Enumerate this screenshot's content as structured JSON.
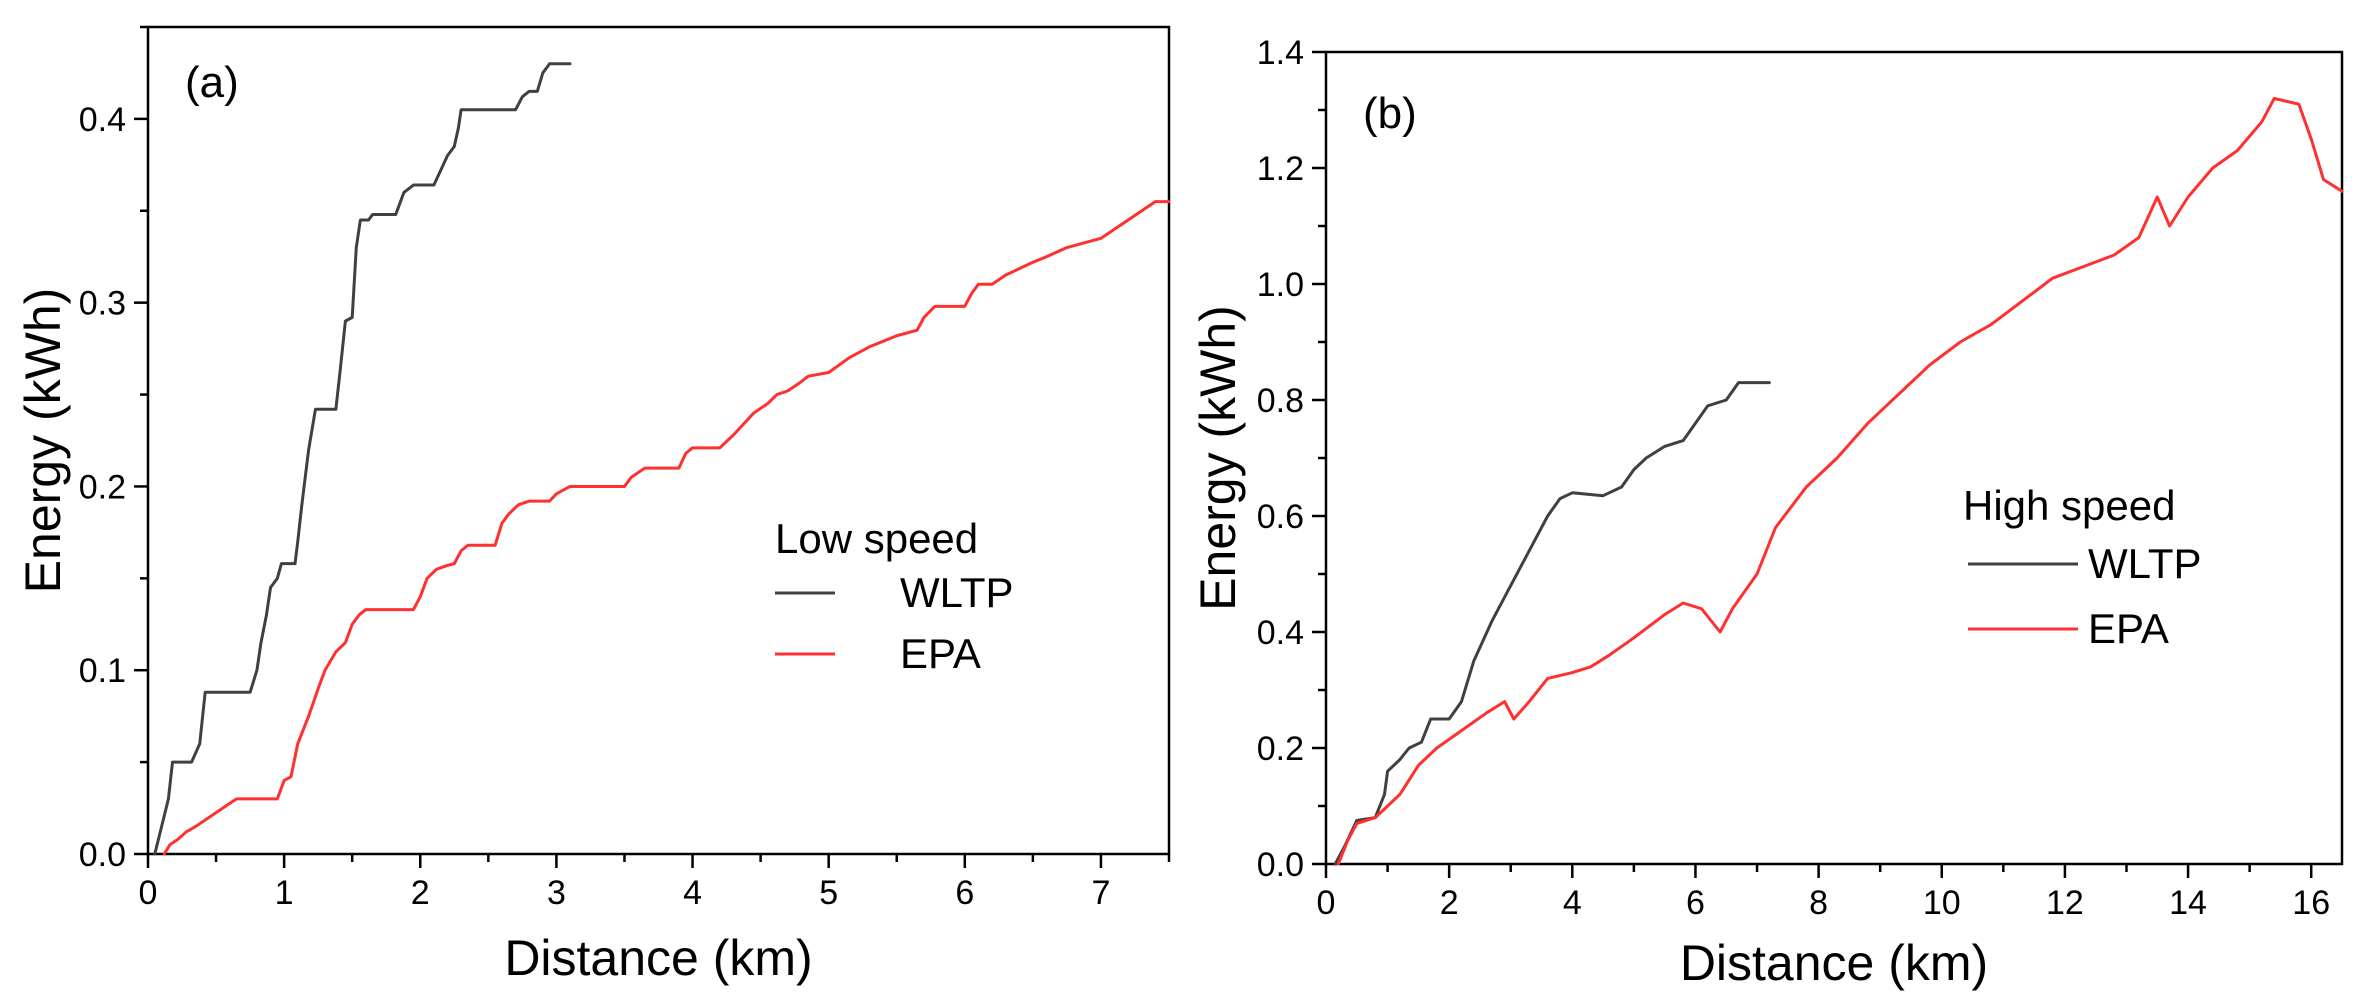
{
  "chart_data": [
    {
      "type": "line",
      "panel_label": "(a)",
      "xlabel": "Distance (km)",
      "ylabel": "Energy (kWh)",
      "xlim": [
        0,
        7.5
      ],
      "ylim": [
        0,
        0.45
      ],
      "xticks": [
        0,
        1,
        2,
        3,
        4,
        5,
        6,
        7
      ],
      "yticks": [
        0.0,
        0.1,
        0.2,
        0.3,
        0.4
      ],
      "ytick_decimals": 1,
      "legend_title": "Low speed",
      "legend_placement": "center-right",
      "grid": false,
      "series": [
        {
          "name": "WLTP",
          "color": "#404040",
          "points": [
            [
              0.05,
              0
            ],
            [
              0.1,
              0.015
            ],
            [
              0.15,
              0.03
            ],
            [
              0.18,
              0.05
            ],
            [
              0.32,
              0.05
            ],
            [
              0.38,
              0.06
            ],
            [
              0.42,
              0.088
            ],
            [
              0.75,
              0.088
            ],
            [
              0.8,
              0.1
            ],
            [
              0.83,
              0.115
            ],
            [
              0.87,
              0.13
            ],
            [
              0.9,
              0.145
            ],
            [
              0.95,
              0.15
            ],
            [
              0.98,
              0.158
            ],
            [
              1.08,
              0.158
            ],
            [
              1.1,
              0.17
            ],
            [
              1.13,
              0.19
            ],
            [
              1.18,
              0.22
            ],
            [
              1.23,
              0.242
            ],
            [
              1.38,
              0.242
            ],
            [
              1.41,
              0.262
            ],
            [
              1.45,
              0.29
            ],
            [
              1.5,
              0.292
            ],
            [
              1.53,
              0.33
            ],
            [
              1.56,
              0.345
            ],
            [
              1.62,
              0.345
            ],
            [
              1.65,
              0.348
            ],
            [
              1.82,
              0.348
            ],
            [
              1.88,
              0.36
            ],
            [
              1.95,
              0.364
            ],
            [
              2.1,
              0.364
            ],
            [
              2.15,
              0.372
            ],
            [
              2.2,
              0.38
            ],
            [
              2.25,
              0.385
            ],
            [
              2.28,
              0.395
            ],
            [
              2.3,
              0.405
            ],
            [
              2.7,
              0.405
            ],
            [
              2.75,
              0.412
            ],
            [
              2.8,
              0.415
            ],
            [
              2.86,
              0.415
            ],
            [
              2.9,
              0.425
            ],
            [
              2.95,
              0.43
            ],
            [
              3.1,
              0.43
            ]
          ]
        },
        {
          "name": "EPA",
          "color": "#ff3030",
          "points": [
            [
              0.12,
              0
            ],
            [
              0.16,
              0.005
            ],
            [
              0.22,
              0.008
            ],
            [
              0.28,
              0.012
            ],
            [
              0.35,
              0.015
            ],
            [
              0.45,
              0.02
            ],
            [
              0.55,
              0.025
            ],
            [
              0.65,
              0.03
            ],
            [
              0.95,
              0.03
            ],
            [
              1.0,
              0.04
            ],
            [
              1.05,
              0.042
            ],
            [
              1.1,
              0.06
            ],
            [
              1.18,
              0.075
            ],
            [
              1.25,
              0.09
            ],
            [
              1.3,
              0.1
            ],
            [
              1.38,
              0.11
            ],
            [
              1.45,
              0.115
            ],
            [
              1.5,
              0.125
            ],
            [
              1.55,
              0.13
            ],
            [
              1.6,
              0.133
            ],
            [
              1.95,
              0.133
            ],
            [
              2.0,
              0.14
            ],
            [
              2.05,
              0.15
            ],
            [
              2.12,
              0.155
            ],
            [
              2.2,
              0.157
            ],
            [
              2.25,
              0.158
            ],
            [
              2.3,
              0.165
            ],
            [
              2.35,
              0.168
            ],
            [
              2.55,
              0.168
            ],
            [
              2.6,
              0.18
            ],
            [
              2.65,
              0.185
            ],
            [
              2.72,
              0.19
            ],
            [
              2.8,
              0.192
            ],
            [
              2.95,
              0.192
            ],
            [
              3.0,
              0.196
            ],
            [
              3.1,
              0.2
            ],
            [
              3.5,
              0.2
            ],
            [
              3.55,
              0.205
            ],
            [
              3.65,
              0.21
            ],
            [
              3.9,
              0.21
            ],
            [
              3.95,
              0.218
            ],
            [
              4.0,
              0.221
            ],
            [
              4.2,
              0.221
            ],
            [
              4.3,
              0.228
            ],
            [
              4.45,
              0.24
            ],
            [
              4.55,
              0.245
            ],
            [
              4.62,
              0.25
            ],
            [
              4.7,
              0.252
            ],
            [
              4.78,
              0.256
            ],
            [
              4.85,
              0.26
            ],
            [
              5.0,
              0.262
            ],
            [
              5.15,
              0.27
            ],
            [
              5.3,
              0.276
            ],
            [
              5.5,
              0.282
            ],
            [
              5.65,
              0.285
            ],
            [
              5.7,
              0.292
            ],
            [
              5.78,
              0.298
            ],
            [
              6.0,
              0.298
            ],
            [
              6.05,
              0.305
            ],
            [
              6.1,
              0.31
            ],
            [
              6.2,
              0.31
            ],
            [
              6.3,
              0.315
            ],
            [
              6.5,
              0.322
            ],
            [
              6.6,
              0.325
            ],
            [
              6.75,
              0.33
            ],
            [
              7.0,
              0.335
            ],
            [
              7.1,
              0.34
            ],
            [
              7.2,
              0.345
            ],
            [
              7.3,
              0.35
            ],
            [
              7.4,
              0.355
            ],
            [
              7.5,
              0.355
            ]
          ]
        }
      ]
    },
    {
      "type": "line",
      "panel_label": "(b)",
      "xlabel": "Distance (km)",
      "ylabel": "Energy (kWh)",
      "xlim": [
        0,
        16.5
      ],
      "ylim": [
        0,
        1.4
      ],
      "xticks": [
        0,
        2,
        4,
        6,
        8,
        10,
        12,
        14,
        16
      ],
      "yticks": [
        0.0,
        0.2,
        0.4,
        0.6,
        0.8,
        1.0,
        1.2,
        1.4
      ],
      "ytick_decimals": 1,
      "legend_title": "High speed",
      "legend_placement": "center-right",
      "grid": false,
      "series": [
        {
          "name": "WLTP",
          "color": "#404040",
          "points": [
            [
              0.15,
              0
            ],
            [
              0.3,
              0.03
            ],
            [
              0.5,
              0.075
            ],
            [
              0.8,
              0.08
            ],
            [
              0.95,
              0.12
            ],
            [
              1.0,
              0.16
            ],
            [
              1.2,
              0.18
            ],
            [
              1.35,
              0.2
            ],
            [
              1.55,
              0.21
            ],
            [
              1.7,
              0.25
            ],
            [
              2.0,
              0.25
            ],
            [
              2.2,
              0.28
            ],
            [
              2.4,
              0.35
            ],
            [
              2.7,
              0.42
            ],
            [
              3.0,
              0.48
            ],
            [
              3.3,
              0.54
            ],
            [
              3.6,
              0.6
            ],
            [
              3.8,
              0.63
            ],
            [
              4.0,
              0.64
            ],
            [
              4.5,
              0.635
            ],
            [
              4.8,
              0.65
            ],
            [
              5.0,
              0.68
            ],
            [
              5.2,
              0.7
            ],
            [
              5.5,
              0.72
            ],
            [
              5.8,
              0.73
            ],
            [
              6.0,
              0.76
            ],
            [
              6.2,
              0.79
            ],
            [
              6.5,
              0.8
            ],
            [
              6.7,
              0.83
            ],
            [
              7.2,
              0.83
            ]
          ]
        },
        {
          "name": "EPA",
          "color": "#ff3030",
          "points": [
            [
              0.2,
              0
            ],
            [
              0.35,
              0.04
            ],
            [
              0.5,
              0.07
            ],
            [
              0.8,
              0.08
            ],
            [
              1.2,
              0.12
            ],
            [
              1.5,
              0.17
            ],
            [
              1.8,
              0.2
            ],
            [
              2.2,
              0.23
            ],
            [
              2.6,
              0.26
            ],
            [
              2.9,
              0.28
            ],
            [
              3.05,
              0.25
            ],
            [
              3.3,
              0.28
            ],
            [
              3.6,
              0.32
            ],
            [
              4.0,
              0.33
            ],
            [
              4.3,
              0.34
            ],
            [
              4.6,
              0.36
            ],
            [
              5.0,
              0.39
            ],
            [
              5.5,
              0.43
            ],
            [
              5.8,
              0.45
            ],
            [
              6.1,
              0.44
            ],
            [
              6.4,
              0.4
            ],
            [
              6.6,
              0.44
            ],
            [
              7.0,
              0.5
            ],
            [
              7.3,
              0.58
            ],
            [
              7.8,
              0.65
            ],
            [
              8.3,
              0.7
            ],
            [
              8.8,
              0.76
            ],
            [
              9.3,
              0.81
            ],
            [
              9.8,
              0.86
            ],
            [
              10.3,
              0.9
            ],
            [
              10.8,
              0.93
            ],
            [
              11.3,
              0.97
            ],
            [
              11.8,
              1.01
            ],
            [
              12.3,
              1.03
            ],
            [
              12.8,
              1.05
            ],
            [
              13.2,
              1.08
            ],
            [
              13.5,
              1.15
            ],
            [
              13.7,
              1.1
            ],
            [
              14.0,
              1.15
            ],
            [
              14.4,
              1.2
            ],
            [
              14.8,
              1.23
            ],
            [
              15.2,
              1.28
            ],
            [
              15.4,
              1.32
            ],
            [
              15.8,
              1.31
            ],
            [
              16.0,
              1.25
            ],
            [
              16.2,
              1.18
            ],
            [
              16.5,
              1.16
            ]
          ]
        }
      ]
    }
  ]
}
